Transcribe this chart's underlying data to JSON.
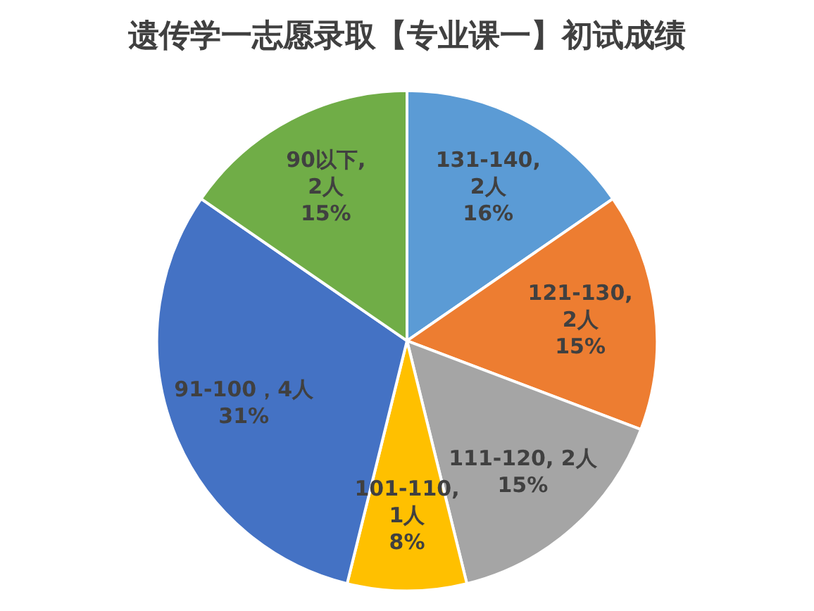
{
  "chart_data": {
    "type": "pie",
    "title": "遗传学一志愿录取【专业课一】初试成绩",
    "categories": [
      "131-140",
      "121-130",
      "111-120",
      "101-110",
      "91-100",
      "90以下"
    ],
    "values": [
      2,
      2,
      2,
      1,
      4,
      2
    ],
    "value_labels": [
      ",\n2人\n16%",
      ",\n2人\n15%",
      ", 2人\n15%",
      ",\n1人\n8%",
      "，4人\n31%",
      ",\n2人\n15%"
    ],
    "colors": [
      "#5b9bd5",
      "#ed7d31",
      "#a5a5a5",
      "#ffc000",
      "#4472c4",
      "#70ad47"
    ],
    "legend": false
  }
}
